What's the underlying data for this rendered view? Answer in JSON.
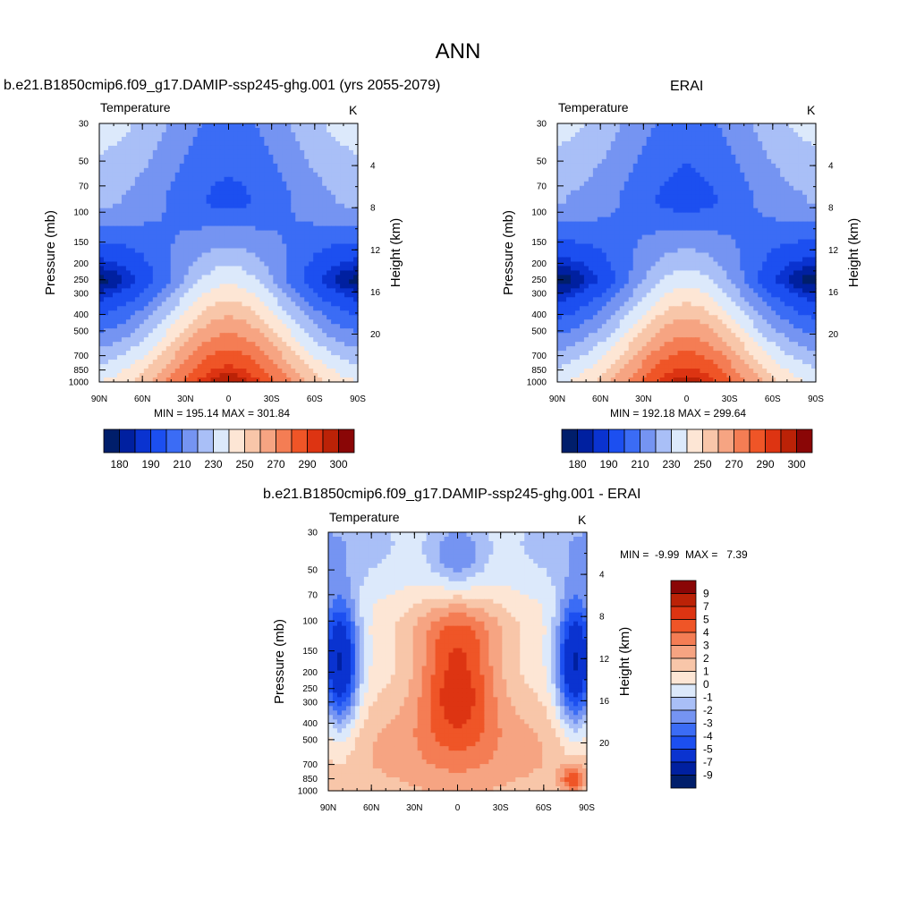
{
  "title": "ANN",
  "colors": {
    "abs_scale": [
      "#001e6b",
      "#0020a0",
      "#0a33d0",
      "#1c4ff0",
      "#3b6cf5",
      "#7594f2",
      "#a9bff7",
      "#dce9fb",
      "#fde6d5",
      "#f8c6a9",
      "#f6a482",
      "#f47d54",
      "#ef5527",
      "#dd3412",
      "#bb2207",
      "#8a0606"
    ],
    "diff_scale": [
      "#001e6b",
      "#0020a0",
      "#0a33d0",
      "#1c4ff0",
      "#3b6cf5",
      "#7594f2",
      "#a9bff7",
      "#dce9fb",
      "#fde6d5",
      "#f8c6a9",
      "#f6a482",
      "#f47d54",
      "#ef5527",
      "#dd3412",
      "#bb2207",
      "#8a0606"
    ]
  },
  "panels": [
    {
      "case_title": "b.e21.B1850cmip6.f09_g17.DAMIP-ssp245-ghg.001 (yrs 2055-2079)",
      "left_string": "Temperature",
      "right_string": "K",
      "stats": "MIN = 195.14  MAX = 301.84"
    },
    {
      "case_title": "ERAI",
      "left_string": "Temperature",
      "right_string": "K",
      "stats": "MIN = 192.18  MAX = 299.64"
    },
    {
      "case_title": "b.e21.B1850cmip6.f09_g17.DAMIP-ssp245-ghg.001 - ERAI",
      "left_string": "Temperature",
      "right_string": "K",
      "stats": "MIN =  -9.99  MAX =   7.39"
    }
  ],
  "chart_data": [
    {
      "type": "heatmap",
      "title": "b.e21.B1850cmip6.f09_g17.DAMIP-ssp245-ghg.001 (yrs 2055-2079)",
      "variable": "Temperature",
      "units": "K",
      "xlabel": "",
      "ylabel": "Pressure (mb)",
      "y2label": "Height (km)",
      "x_ticks": [
        "90N",
        "60N",
        "30N",
        "0",
        "30S",
        "60S",
        "90S"
      ],
      "y_ticks": [
        "30",
        "50",
        "70",
        "100",
        "150",
        "200",
        "250",
        "300",
        "400",
        "500",
        "700",
        "850",
        "1000"
      ],
      "y2_ticks": [
        "20",
        "16",
        "12",
        "8",
        "4"
      ],
      "min": 195.14,
      "max": 301.84,
      "colorbar_labels": [
        "180",
        "190",
        "210",
        "230",
        "250",
        "270",
        "290",
        "300"
      ],
      "colorbar_levels": [
        180,
        185,
        190,
        200,
        210,
        220,
        230,
        240,
        250,
        260,
        270,
        280,
        290,
        295,
        300
      ]
    },
    {
      "type": "heatmap",
      "title": "ERAI",
      "variable": "Temperature",
      "units": "K",
      "xlabel": "",
      "ylabel": "Pressure (mb)",
      "y2label": "Height (km)",
      "x_ticks": [
        "90N",
        "60N",
        "30N",
        "0",
        "30S",
        "60S",
        "90S"
      ],
      "y_ticks": [
        "30",
        "50",
        "70",
        "100",
        "150",
        "200",
        "250",
        "300",
        "400",
        "500",
        "700",
        "850",
        "1000"
      ],
      "y2_ticks": [
        "20",
        "16",
        "12",
        "8",
        "4"
      ],
      "min": 192.18,
      "max": 299.64,
      "colorbar_labels": [
        "180",
        "190",
        "210",
        "230",
        "250",
        "270",
        "290",
        "300"
      ],
      "colorbar_levels": [
        180,
        185,
        190,
        200,
        210,
        220,
        230,
        240,
        250,
        260,
        270,
        280,
        290,
        295,
        300
      ]
    },
    {
      "type": "heatmap",
      "title": "b.e21.B1850cmip6.f09_g17.DAMIP-ssp245-ghg.001 - ERAI",
      "variable": "Temperature",
      "units": "K",
      "xlabel": "",
      "ylabel": "Pressure (mb)",
      "y2label": "Height (km)",
      "x_ticks": [
        "90N",
        "60N",
        "30N",
        "0",
        "30S",
        "60S",
        "90S"
      ],
      "y_ticks": [
        "30",
        "50",
        "70",
        "100",
        "150",
        "200",
        "250",
        "300",
        "400",
        "500",
        "700",
        "850",
        "1000"
      ],
      "y2_ticks": [
        "20",
        "16",
        "12",
        "8",
        "4"
      ],
      "min": -9.99,
      "max": 7.39,
      "colorbar_labels": [
        "9",
        "7",
        "5",
        "4",
        "3",
        "2",
        "1",
        "0",
        "-1",
        "-2",
        "-3",
        "-4",
        "-5",
        "-7",
        "-9"
      ],
      "colorbar_levels": [
        -9,
        -7,
        -5,
        -4,
        -3,
        -2,
        -1,
        0,
        1,
        2,
        3,
        4,
        5,
        7,
        9
      ]
    }
  ]
}
